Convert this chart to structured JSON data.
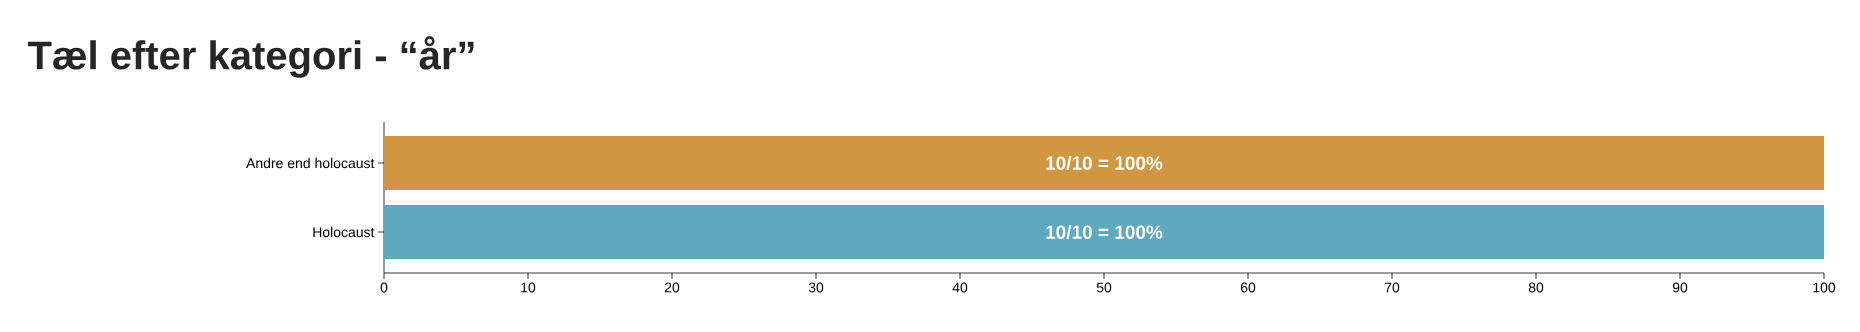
{
  "chart_data": {
    "type": "bar",
    "orientation": "horizontal",
    "title": "Tæl efter kategori - “år”",
    "categories": [
      "Andre end holocaust",
      "Holocaust"
    ],
    "values": [
      100,
      100
    ],
    "colors": [
      "#d19641",
      "#5ea9bf"
    ],
    "value_labels": [
      "10/10 = 100%",
      "10/10 = 100%"
    ],
    "xlim": [
      0,
      100
    ],
    "xticks": [
      0,
      10,
      20,
      30,
      40,
      50,
      60,
      70,
      80,
      90,
      100
    ]
  }
}
